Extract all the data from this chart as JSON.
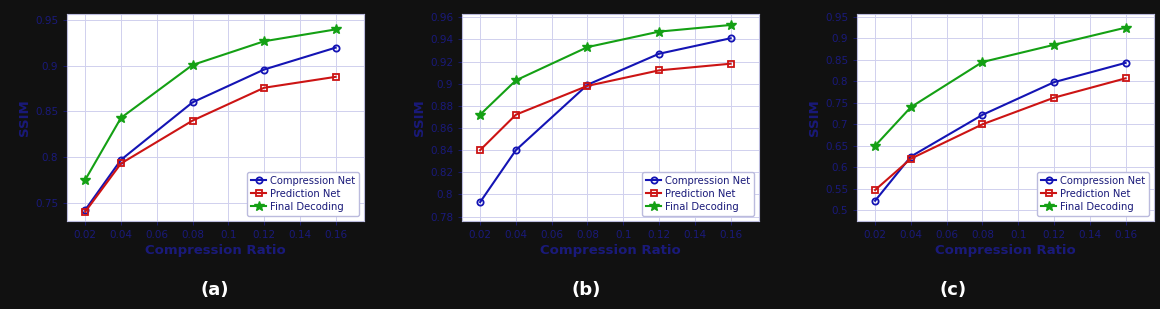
{
  "x": [
    0.02,
    0.04,
    0.08,
    0.12,
    0.16
  ],
  "plots": [
    {
      "label": "(a)",
      "ylabel": "SSIM",
      "xlabel": "Compression Ratio",
      "ylim": [
        0.73,
        0.957
      ],
      "yticks": [
        0.75,
        0.8,
        0.85,
        0.9,
        0.95
      ],
      "compression_net": [
        0.742,
        0.797,
        0.86,
        0.896,
        0.92
      ],
      "prediction_net": [
        0.74,
        0.793,
        0.84,
        0.876,
        0.888
      ],
      "final_decoding": [
        0.775,
        0.843,
        0.901,
        0.927,
        0.94
      ]
    },
    {
      "label": "(b)",
      "ylabel": "SSIM",
      "xlabel": "Compression Ratio",
      "ylim": [
        0.776,
        0.963
      ],
      "yticks": [
        0.78,
        0.8,
        0.82,
        0.84,
        0.86,
        0.88,
        0.9,
        0.92,
        0.94,
        0.96
      ],
      "compression_net": [
        0.793,
        0.84,
        0.899,
        0.927,
        0.941
      ],
      "prediction_net": [
        0.84,
        0.872,
        0.898,
        0.912,
        0.918
      ],
      "final_decoding": [
        0.872,
        0.903,
        0.933,
        0.947,
        0.953
      ]
    },
    {
      "label": "(c)",
      "ylabel": "SSIM",
      "xlabel": "Compression Ratio",
      "ylim": [
        0.475,
        0.957
      ],
      "yticks": [
        0.5,
        0.55,
        0.6,
        0.65,
        0.7,
        0.75,
        0.8,
        0.85,
        0.9,
        0.95
      ],
      "compression_net": [
        0.522,
        0.625,
        0.722,
        0.798,
        0.843
      ],
      "prediction_net": [
        0.547,
        0.62,
        0.7,
        0.762,
        0.807
      ],
      "final_decoding": [
        0.65,
        0.74,
        0.845,
        0.885,
        0.925
      ]
    }
  ],
  "xticks": [
    0.02,
    0.04,
    0.06,
    0.08,
    0.1,
    0.12,
    0.14,
    0.16
  ],
  "legend_labels": [
    "Compression Net",
    "Prediction Net",
    "Final Decoding"
  ],
  "colors": {
    "compression_net": "#1414b4",
    "prediction_net": "#cc1414",
    "final_decoding": "#14a014"
  },
  "background_color": "#ffffff",
  "bottom_bar_color": "#111111",
  "axis_label_color": "#1a1a7a",
  "tick_label_color": "#1a1a7a",
  "grid_color": "#d0d0ee",
  "legend_text_color": "#1a1a7a",
  "spine_color": "#bbbbdd"
}
